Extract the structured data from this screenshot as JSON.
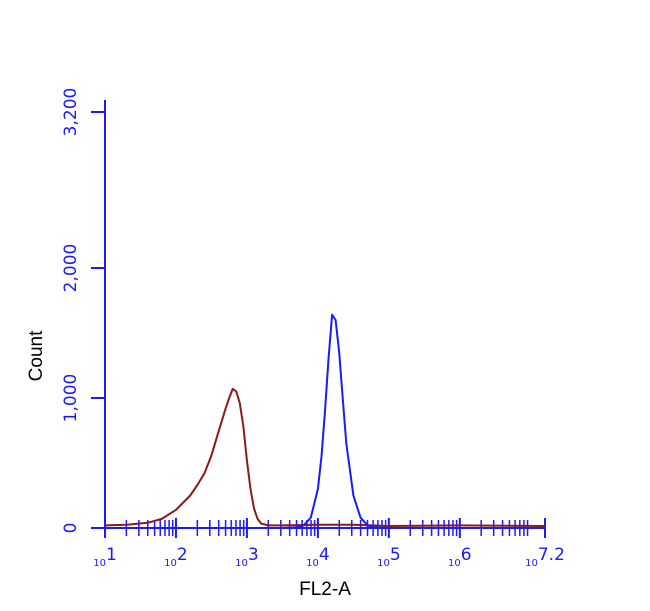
{
  "chart_data": {
    "type": "line",
    "title": "",
    "xlabel": "FL2-A",
    "ylabel": "Count",
    "x_scale": "log10",
    "xlim": [
      1,
      7.2
    ],
    "ylim": [
      0,
      3200
    ],
    "x_ticks": [
      {
        "value": 1,
        "base": "10",
        "exp": "1"
      },
      {
        "value": 2,
        "base": "10",
        "exp": "2"
      },
      {
        "value": 3,
        "base": "10",
        "exp": "3"
      },
      {
        "value": 4,
        "base": "10",
        "exp": "4"
      },
      {
        "value": 5,
        "base": "10",
        "exp": "5"
      },
      {
        "value": 6,
        "base": "10",
        "exp": "6"
      },
      {
        "value": 7.2,
        "base": "10",
        "exp": "7.2"
      }
    ],
    "y_ticks": [
      {
        "value": 0,
        "label": "0"
      },
      {
        "value": 1000,
        "label": "1,000"
      },
      {
        "value": 2000,
        "label": "2,000"
      },
      {
        "value": 3200,
        "label": "3,200"
      }
    ],
    "grid": false,
    "legend": "none",
    "series": [
      {
        "color": "#8b1a1a",
        "x": [
          1.0,
          1.3,
          1.6,
          1.8,
          2.0,
          2.2,
          2.3,
          2.4,
          2.5,
          2.6,
          2.7,
          2.75,
          2.8,
          2.85,
          2.9,
          2.95,
          3.0,
          3.05,
          3.1,
          3.15,
          3.2,
          3.3,
          3.5,
          4.0,
          4.5,
          5.0,
          6.0,
          7.2
        ],
        "y": [
          20,
          25,
          40,
          70,
          140,
          250,
          330,
          420,
          560,
          740,
          920,
          1000,
          1070,
          1050,
          960,
          780,
          520,
          300,
          150,
          70,
          35,
          20,
          20,
          25,
          25,
          15,
          20,
          15
        ]
      },
      {
        "color": "#1a1aff",
        "x": [
          1.0,
          3.5,
          3.7,
          3.8,
          3.9,
          4.0,
          4.05,
          4.1,
          4.15,
          4.2,
          4.25,
          4.3,
          4.35,
          4.4,
          4.5,
          4.6,
          4.7,
          4.8,
          5.0,
          7.2
        ],
        "y": [
          0,
          0,
          5,
          20,
          80,
          300,
          550,
          900,
          1300,
          1640,
          1600,
          1350,
          1000,
          650,
          250,
          80,
          20,
          5,
          0,
          0
        ]
      }
    ]
  }
}
